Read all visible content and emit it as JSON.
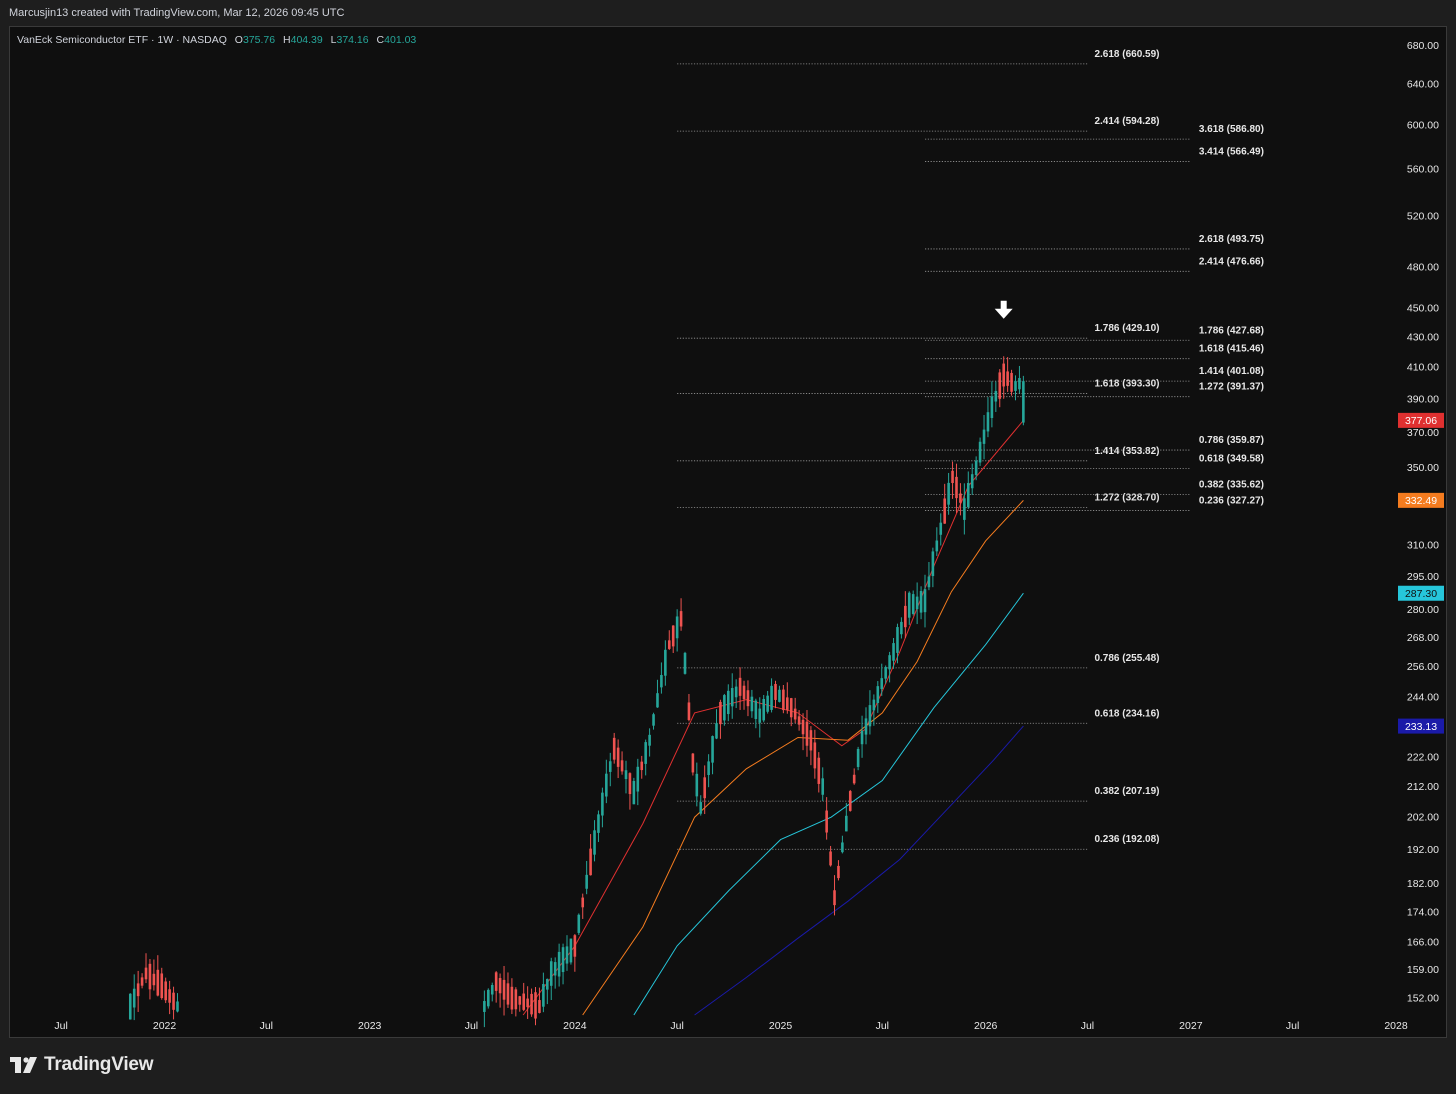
{
  "header": {
    "attribution": "Marcusjin13 created with TradingView.com, Mar 12, 2026 09:45 UTC"
  },
  "legend": {
    "symbol": "VanEck Semiconductor ETF · 1W · NASDAQ",
    "o_label": "O",
    "o_value": "375.76",
    "h_label": "H",
    "h_value": "404.39",
    "l_label": "L",
    "l_value": "374.16",
    "c_label": "C",
    "c_value": "401.03",
    "value_color": "#26a69a"
  },
  "brand": {
    "name": "TradingView"
  },
  "colors": {
    "up": "#26a69a",
    "down": "#ef5350",
    "ma_red": "#e03030",
    "ma_orange": "#f57c1f",
    "ma_cyan": "#26c6da",
    "ma_blue": "#1a1aa8",
    "fib_line": "#9a9a9a",
    "label_text": "#e8e8e8"
  },
  "chart_data": {
    "type": "candlestick",
    "title": "",
    "y_scale": "log",
    "ylim": [
      148,
      700
    ],
    "y_ticks": [
      152,
      159,
      166,
      174,
      182,
      192,
      202,
      212,
      222,
      233,
      244,
      256,
      268,
      280,
      295,
      310,
      350,
      370,
      390,
      410,
      430,
      450,
      480,
      520,
      560,
      600,
      640,
      680
    ],
    "y_tick_labels": [
      "152.00",
      "159.00",
      "166.00",
      "174.00",
      "182.00",
      "192.00",
      "202.00",
      "212.00",
      "222.00",
      "233.00",
      "244.00",
      "256.00",
      "268.00",
      "280.00",
      "295.00",
      "310.00",
      "350.00",
      "370.00",
      "390.00",
      "410.00",
      "430.00",
      "450.00",
      "480.00",
      "520.00",
      "560.00",
      "600.00",
      "640.00",
      "680.00"
    ],
    "x_axis": {
      "start": "2021-04-01",
      "end": "2028-01-01",
      "ticks": [
        {
          "date": "2021-07-01",
          "label": "Jul"
        },
        {
          "date": "2022-01-01",
          "label": "2022"
        },
        {
          "date": "2022-07-01",
          "label": "Jul"
        },
        {
          "date": "2023-01-01",
          "label": "2023"
        },
        {
          "date": "2023-07-01",
          "label": "Jul"
        },
        {
          "date": "2024-01-01",
          "label": "2024"
        },
        {
          "date": "2024-07-01",
          "label": "Jul"
        },
        {
          "date": "2025-01-01",
          "label": "2025"
        },
        {
          "date": "2025-07-01",
          "label": "Jul"
        },
        {
          "date": "2026-01-01",
          "label": "2026"
        },
        {
          "date": "2026-07-01",
          "label": "Jul"
        },
        {
          "date": "2027-01-01",
          "label": "2027"
        },
        {
          "date": "2027-07-01",
          "label": "Jul"
        },
        {
          "date": "2028-01-01",
          "label": "2028"
        }
      ]
    },
    "price_path": [
      [
        "2021-11-01",
        150
      ],
      [
        "2021-11-29",
        158
      ],
      [
        "2021-12-27",
        155
      ],
      [
        "2022-01-24",
        150
      ],
      [
        "2023-07-24",
        150
      ],
      [
        "2023-08-14",
        156
      ],
      [
        "2023-09-11",
        152
      ],
      [
        "2023-10-30",
        150
      ],
      [
        "2023-11-20",
        158
      ],
      [
        "2024-01-01",
        165
      ],
      [
        "2024-02-12",
        200
      ],
      [
        "2024-03-11",
        225
      ],
      [
        "2024-04-15",
        210
      ],
      [
        "2024-05-13",
        228
      ],
      [
        "2024-06-17",
        265
      ],
      [
        "2024-07-08",
        276
      ],
      [
        "2024-07-29",
        220
      ],
      [
        "2024-08-12",
        205
      ],
      [
        "2024-09-16",
        238
      ],
      [
        "2024-10-21",
        248
      ],
      [
        "2024-11-25",
        237
      ],
      [
        "2024-12-23",
        246
      ],
      [
        "2025-01-20",
        240
      ],
      [
        "2025-02-24",
        228
      ],
      [
        "2025-03-17",
        212
      ],
      [
        "2025-04-07",
        178
      ],
      [
        "2025-04-28",
        200
      ],
      [
        "2025-05-26",
        229
      ],
      [
        "2025-06-23",
        245
      ],
      [
        "2025-07-21",
        262
      ],
      [
        "2025-08-18",
        282
      ],
      [
        "2025-09-15",
        284
      ],
      [
        "2025-10-13",
        318
      ],
      [
        "2025-11-03",
        345
      ],
      [
        "2025-11-24",
        328
      ],
      [
        "2025-12-15",
        350
      ],
      [
        "2026-01-12",
        385
      ],
      [
        "2026-02-02",
        405
      ],
      [
        "2026-02-23",
        398
      ],
      [
        "2026-03-09",
        401
      ]
    ],
    "last_candle": {
      "date": "2026-03-09",
      "open": 375.76,
      "high": 404.39,
      "low": 374.16,
      "close": 401.03
    },
    "moving_averages": [
      {
        "color_key": "ma_red",
        "last": 377.06,
        "points": [
          [
            "2023-10-01",
            148
          ],
          [
            "2024-01-01",
            165
          ],
          [
            "2024-05-01",
            200
          ],
          [
            "2024-08-01",
            238
          ],
          [
            "2024-11-01",
            243
          ],
          [
            "2025-02-01",
            238
          ],
          [
            "2025-04-20",
            226
          ],
          [
            "2025-06-01",
            232
          ],
          [
            "2025-08-01",
            262
          ],
          [
            "2025-10-01",
            300
          ],
          [
            "2025-12-01",
            340
          ],
          [
            "2026-03-09",
            377.06
          ]
        ]
      },
      {
        "color_key": "ma_orange",
        "last": 332.49,
        "points": [
          [
            "2024-01-15",
            148
          ],
          [
            "2024-05-01",
            170
          ],
          [
            "2024-08-01",
            202
          ],
          [
            "2024-11-01",
            218
          ],
          [
            "2025-02-01",
            229
          ],
          [
            "2025-05-01",
            228
          ],
          [
            "2025-07-01",
            238
          ],
          [
            "2025-09-01",
            258
          ],
          [
            "2025-11-01",
            288
          ],
          [
            "2026-01-01",
            312
          ],
          [
            "2026-03-09",
            332.49
          ]
        ]
      },
      {
        "color_key": "ma_cyan",
        "last": 287.3,
        "points": [
          [
            "2024-04-15",
            148
          ],
          [
            "2024-07-01",
            165
          ],
          [
            "2024-10-01",
            180
          ],
          [
            "2025-01-01",
            195
          ],
          [
            "2025-04-01",
            202
          ],
          [
            "2025-07-01",
            214
          ],
          [
            "2025-10-01",
            240
          ],
          [
            "2026-01-01",
            265
          ],
          [
            "2026-03-09",
            287.3
          ]
        ]
      },
      {
        "color_key": "ma_blue",
        "last": 233.13,
        "points": [
          [
            "2024-08-01",
            148
          ],
          [
            "2024-11-01",
            157
          ],
          [
            "2025-02-01",
            167
          ],
          [
            "2025-05-01",
            177
          ],
          [
            "2025-08-01",
            189
          ],
          [
            "2025-11-01",
            206
          ],
          [
            "2026-01-15",
            221
          ],
          [
            "2026-03-09",
            233.13
          ]
        ]
      }
    ],
    "fib_set_a": {
      "start": "2024-07-01",
      "end": "2026-07-01",
      "levels": [
        {
          "label": "2.618 (660.59)",
          "value": 660.59
        },
        {
          "label": "2.414 (594.28)",
          "value": 594.28
        },
        {
          "label": "1.786 (429.10)",
          "value": 429.1
        },
        {
          "label": "1.618 (393.30)",
          "value": 393.3
        },
        {
          "label": "1.414 (353.82)",
          "value": 353.82
        },
        {
          "label": "1.272 (328.70)",
          "value": 328.7
        },
        {
          "label": "0.786 (255.48)",
          "value": 255.48
        },
        {
          "label": "0.618 (234.16)",
          "value": 234.16
        },
        {
          "label": "0.382 (207.19)",
          "value": 207.19
        },
        {
          "label": "0.236 (192.08)",
          "value": 192.08
        }
      ]
    },
    "fib_set_b": {
      "start": "2025-09-15",
      "end": "2027-01-01",
      "levels": [
        {
          "label": "3.618 (586.80)",
          "value": 586.8
        },
        {
          "label": "3.414 (566.49)",
          "value": 566.49
        },
        {
          "label": "2.618 (493.75)",
          "value": 493.75
        },
        {
          "label": "2.414 (476.66)",
          "value": 476.66
        },
        {
          "label": "1.786 (427.68)",
          "value": 427.68
        },
        {
          "label": "1.618 (415.46)",
          "value": 415.46
        },
        {
          "label": "1.414 (401.08)",
          "value": 401.08
        },
        {
          "label": "1.272 (391.37)",
          "value": 391.37
        },
        {
          "label": "0.786 (359.87)",
          "value": 359.87
        },
        {
          "label": "0.618 (349.58)",
          "value": 349.58
        },
        {
          "label": "0.382 (335.62)",
          "value": 335.62
        },
        {
          "label": "0.236 (327.27)",
          "value": 327.27
        }
      ]
    },
    "price_tags": [
      {
        "value": 377.06,
        "text": "377.06",
        "color_key": "ma_red"
      },
      {
        "value": 332.49,
        "text": "332.49",
        "color_key": "ma_orange"
      },
      {
        "value": 287.3,
        "text": "287.30",
        "color_key": "ma_cyan"
      },
      {
        "value": 233.13,
        "text": "233.13",
        "color_key": "ma_blue"
      }
    ],
    "annotation_arrow": {
      "date": "2026-02-02",
      "value": 448
    }
  }
}
